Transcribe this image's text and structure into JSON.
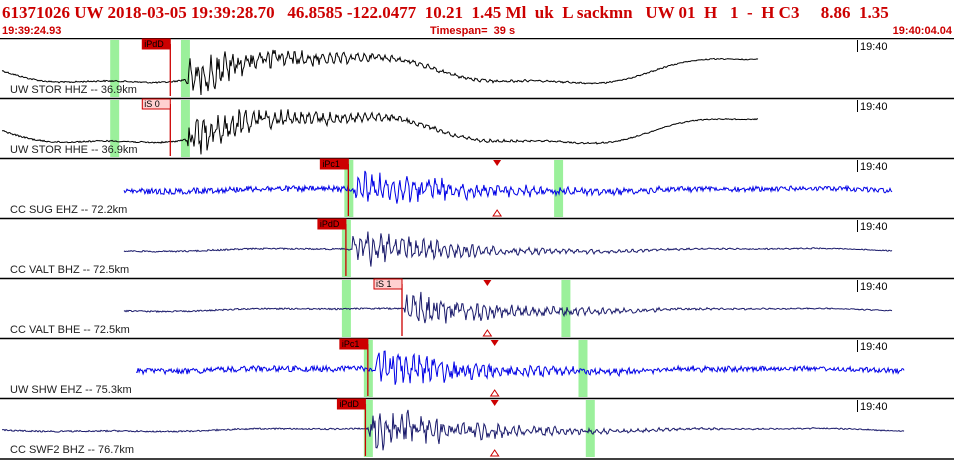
{
  "header": {
    "title": "61371026 UW 2018-03-05 19:39:28.70   46.8585 -122.0477  10.21  1.45 Ml  uk  L sackmn   UW 01  H   1  -  H C3     8.86  1.35",
    "start_time": "19:39:24.93",
    "timespan": "Timespan=  39 s",
    "end_time": "19:40:04.04"
  },
  "colors": {
    "black_trace": "#000000",
    "blue_trace": "#0000e6",
    "navy_trace": "#1a1a6b",
    "pick": "#cc0000",
    "window": "#90ee90",
    "label": "#222222"
  },
  "channels": [
    {
      "label": "UW STOR HHZ -- 36.9km",
      "time_mark": "19:40",
      "color": "black_trace",
      "pick": {
        "label": "iPdD",
        "kind": "P",
        "time": 6.9
      },
      "s_pick": null,
      "windows": [
        4.6,
        7.5
      ],
      "trace_start": 0.0,
      "trace_end": 31.0,
      "onset": 7.5,
      "amplitude": 0.85
    },
    {
      "label": "UW STOR HHE -- 36.9km",
      "time_mark": "19:40",
      "color": "black_trace",
      "pick": {
        "label": "iS 0",
        "kind": "S",
        "time": 6.9
      },
      "s_pick": null,
      "windows": [
        4.6,
        7.5
      ],
      "trace_start": 0.0,
      "trace_end": 31.0,
      "onset": 7.5,
      "amplitude": 0.85
    },
    {
      "label": "CC SUG EHZ -- 72.2km",
      "time_mark": "19:40",
      "color": "blue_trace",
      "pick": {
        "label": "iPc1",
        "kind": "P",
        "time": 14.2
      },
      "s_pick": {
        "time": 20.3
      },
      "windows": [
        14.2,
        22.8
      ],
      "trace_start": 5.0,
      "trace_end": 36.5,
      "onset": 14.4,
      "amplitude": 0.8
    },
    {
      "label": "CC VALT BHZ -- 72.5km",
      "time_mark": "19:40",
      "color": "navy_trace",
      "pick": {
        "label": "iPdD",
        "kind": "P",
        "time": 14.1
      },
      "s_pick": null,
      "windows": [
        14.1
      ],
      "trace_start": 5.0,
      "trace_end": 36.5,
      "onset": 14.2,
      "amplitude": 0.75
    },
    {
      "label": "CC VALT BHE -- 72.5km",
      "time_mark": "19:40",
      "color": "navy_trace",
      "pick": {
        "label": "iS 1",
        "kind": "S",
        "time": 16.4
      },
      "s_pick": {
        "time": 19.9
      },
      "windows": [
        14.1,
        23.1
      ],
      "trace_start": 5.0,
      "trace_end": 36.5,
      "onset": 16.4,
      "amplitude": 0.75
    },
    {
      "label": "UW SHW EHZ -- 75.3km",
      "time_mark": "19:40",
      "color": "blue_trace",
      "pick": {
        "label": "iPc1",
        "kind": "P",
        "time": 15.0
      },
      "s_pick": {
        "time": 20.2
      },
      "windows": [
        15.0,
        23.8
      ],
      "trace_start": 5.5,
      "trace_end": 37.0,
      "onset": 15.2,
      "amplitude": 0.85
    },
    {
      "label": "CC SWF2 BHZ -- 76.7km",
      "time_mark": "19:40",
      "color": "navy_trace",
      "pick": {
        "label": "iPdD",
        "kind": "P",
        "time": 14.9
      },
      "s_pick": {
        "time": 20.2
      },
      "windows": [
        15.0,
        24.1
      ],
      "trace_start": 0.0,
      "trace_end": 37.0,
      "onset": 15.0,
      "amplitude": 0.9
    }
  ]
}
